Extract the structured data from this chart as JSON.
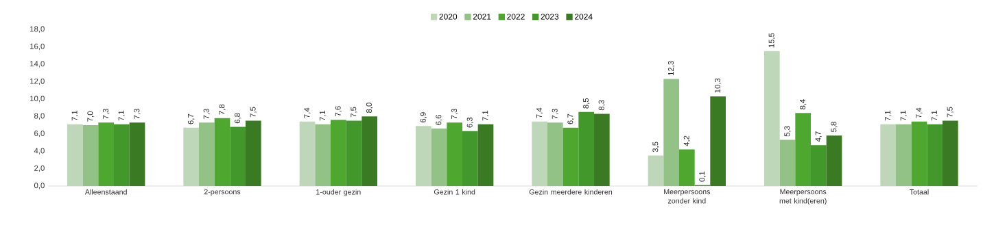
{
  "chart_data": {
    "type": "bar",
    "categories": [
      "Alleenstaand",
      "2-persoons",
      "1-ouder gezin",
      "Gezin 1 kind",
      "Gezin meerdere kinderen",
      "Meerpersoons zonder kind",
      "Meerpersoons met kind(eren)",
      "Totaal"
    ],
    "series": [
      {
        "name": "2020",
        "color": "#bdd7b8",
        "values": [
          7.1,
          6.7,
          7.4,
          6.9,
          7.4,
          3.5,
          15.5,
          7.1
        ],
        "value_labels": [
          "7,1",
          "6,7",
          "7,4",
          "6,9",
          "7,4",
          "3,5",
          "15,5",
          "7,1"
        ]
      },
      {
        "name": "2021",
        "color": "#93c286",
        "values": [
          7.0,
          7.3,
          7.1,
          6.6,
          7.3,
          12.3,
          5.3,
          7.1
        ],
        "value_labels": [
          "7,0",
          "7,3",
          "7,1",
          "6,6",
          "7,3",
          "12,3",
          "5,3",
          "7,1"
        ]
      },
      {
        "name": "2022",
        "color": "#4ea72e",
        "values": [
          7.3,
          7.8,
          7.6,
          7.3,
          6.7,
          4.2,
          8.4,
          7.4
        ],
        "value_labels": [
          "7,3",
          "7,8",
          "7,6",
          "7,3",
          "6,7",
          "4,2",
          "8,4",
          "7,4"
        ]
      },
      {
        "name": "2023",
        "color": "#43982c",
        "values": [
          7.1,
          6.8,
          7.5,
          6.3,
          8.5,
          0.1,
          4.7,
          7.1
        ],
        "value_labels": [
          "7,1",
          "6,8",
          "7,5",
          "6,3",
          "8,5",
          "0,1",
          "4,7",
          "7,1"
        ]
      },
      {
        "name": "2024",
        "color": "#3a7a22",
        "values": [
          7.3,
          7.5,
          8.0,
          7.1,
          8.3,
          10.3,
          5.8,
          7.5
        ],
        "value_labels": [
          "7,3",
          "7,5",
          "8,0",
          "7,1",
          "8,3",
          "10,3",
          "5,8",
          "7,5"
        ]
      }
    ],
    "ylim": [
      0,
      18
    ],
    "yticks": [
      {
        "value": 0,
        "label": "0,0"
      },
      {
        "value": 2,
        "label": "2,0"
      },
      {
        "value": 4,
        "label": "4,0"
      },
      {
        "value": 6,
        "label": "6,0"
      },
      {
        "value": 8,
        "label": "8,0"
      },
      {
        "value": 10,
        "label": "10,0"
      },
      {
        "value": 12,
        "label": "12,0"
      },
      {
        "value": 14,
        "label": "14,0"
      },
      {
        "value": 16,
        "label": "16,0"
      },
      {
        "value": 18,
        "label": "18,0"
      }
    ],
    "grid": false,
    "legend": "top"
  }
}
